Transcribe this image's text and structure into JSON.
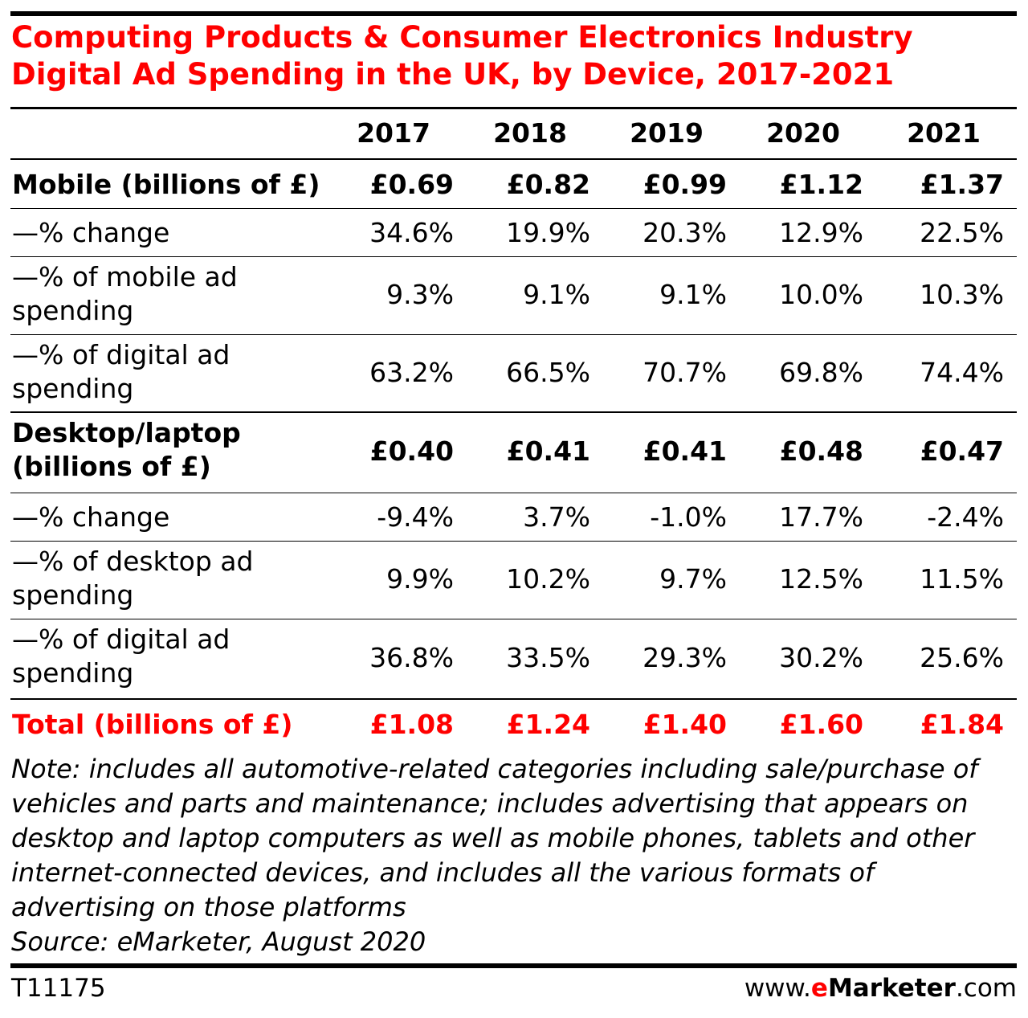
{
  "title": {
    "line1": "Computing Products & Consumer Electronics Industry",
    "line2": "Digital Ad Spending in the UK, by Device, 2017-2021"
  },
  "chart_data": {
    "type": "table",
    "title": "Computing Products & Consumer Electronics Industry Digital Ad Spending in the UK, by Device, 2017-2021",
    "columns": [
      "2017",
      "2018",
      "2019",
      "2020",
      "2021"
    ],
    "rows": [
      {
        "label_lines": [
          "Mobile (billions of £)"
        ],
        "values": [
          "£0.69",
          "£0.82",
          "£0.99",
          "£1.12",
          "£1.37"
        ]
      },
      {
        "label_lines": [
          "—% change"
        ],
        "values": [
          "34.6%",
          "19.9%",
          "20.3%",
          "12.9%",
          "22.5%"
        ]
      },
      {
        "label_lines": [
          "—% of mobile ad",
          "spending"
        ],
        "values": [
          "9.3%",
          "9.1%",
          "9.1%",
          "10.0%",
          "10.3%"
        ]
      },
      {
        "label_lines": [
          "—% of digital ad",
          "spending"
        ],
        "values": [
          "63.2%",
          "66.5%",
          "70.7%",
          "69.8%",
          "74.4%"
        ]
      },
      {
        "label_lines": [
          "Desktop/laptop",
          "(billions of £)"
        ],
        "values": [
          "£0.40",
          "£0.41",
          "£0.41",
          "£0.48",
          "£0.47"
        ]
      },
      {
        "label_lines": [
          "—% change"
        ],
        "values": [
          "-9.4%",
          "3.7%",
          "-1.0%",
          "17.7%",
          "-2.4%"
        ]
      },
      {
        "label_lines": [
          "—% of desktop ad",
          "spending"
        ],
        "values": [
          "9.9%",
          "10.2%",
          "9.7%",
          "12.5%",
          "11.5%"
        ]
      },
      {
        "label_lines": [
          "—% of digital ad",
          "spending"
        ],
        "values": [
          "36.8%",
          "33.5%",
          "29.3%",
          "30.2%",
          "25.6%"
        ]
      },
      {
        "label_lines": [
          "Total (billions of £)"
        ],
        "values": [
          "£1.08",
          "£1.24",
          "£1.40",
          "£1.60",
          "£1.84"
        ]
      }
    ]
  },
  "note_lines": [
    "Note: includes all automotive-related categories including sale/purchase of",
    "vehicles and parts and maintenance; includes advertising that appears on",
    "desktop and laptop computers as well as mobile phones, tablets and other",
    "internet-connected devices, and includes all the various formats of",
    "advertising on those platforms"
  ],
  "source": "Source: eMarketer, August 2020",
  "footer": {
    "chart_id": "T11175",
    "brand_prefix": "www.",
    "brand_e": "e",
    "brand_name": "Marketer",
    "brand_suffix": ".com"
  },
  "colors": {
    "accent": "#ff0000",
    "text": "#000000",
    "rule": "#000000"
  }
}
